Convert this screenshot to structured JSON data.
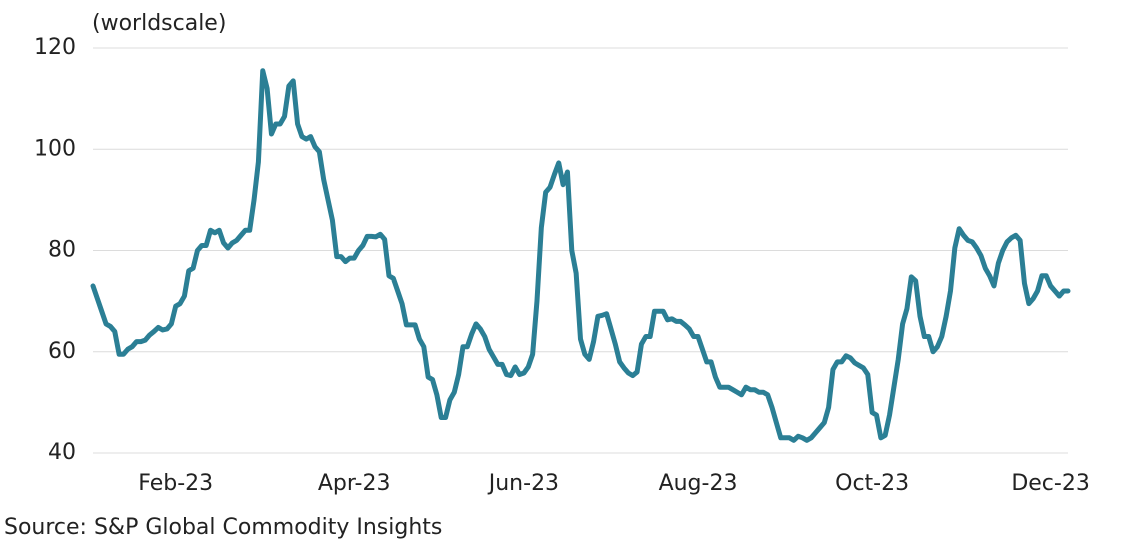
{
  "chart_data": {
    "type": "line",
    "y_axis_label": "(worldscale)",
    "source": "Source: S&P Global Commodity Insights",
    "categories": [
      null,
      null,
      null,
      null,
      null,
      null,
      null,
      null,
      null,
      null,
      null,
      null,
      null,
      null,
      null,
      null,
      null,
      null,
      null,
      "Feb-23",
      null,
      null,
      null,
      null,
      null,
      null,
      null,
      null,
      null,
      null,
      null,
      null,
      null,
      null,
      null,
      null,
      null,
      null,
      null,
      null,
      null,
      null,
      null,
      null,
      null,
      null,
      null,
      null,
      null,
      null,
      null,
      null,
      null,
      null,
      null,
      null,
      null,
      null,
      null,
      null,
      "Apr-23",
      null,
      null,
      null,
      null,
      null,
      null,
      null,
      null,
      null,
      null,
      null,
      null,
      null,
      null,
      null,
      null,
      null,
      null,
      null,
      null,
      null,
      null,
      null,
      null,
      null,
      null,
      null,
      null,
      null,
      null,
      null,
      null,
      null,
      null,
      null,
      null,
      null,
      null,
      "Jun-23",
      null,
      null,
      null,
      null,
      null,
      null,
      null,
      null,
      null,
      null,
      null,
      null,
      null,
      null,
      null,
      null,
      null,
      null,
      null,
      null,
      null,
      null,
      null,
      null,
      null,
      null,
      null,
      null,
      null,
      null,
      null,
      null,
      null,
      null,
      null,
      null,
      null,
      null,
      null,
      "Aug-23",
      null,
      null,
      null,
      null,
      null,
      null,
      null,
      null,
      null,
      null,
      null,
      null,
      null,
      null,
      null,
      null,
      null,
      null,
      null,
      null,
      null,
      null,
      null,
      null,
      null,
      null,
      null,
      null,
      null,
      null,
      null,
      null,
      null,
      null,
      null,
      null,
      null,
      null,
      null,
      "Oct-23",
      null,
      null,
      null,
      null,
      null,
      null,
      null,
      null,
      null,
      null,
      null,
      null,
      null,
      null,
      null,
      null,
      null,
      null,
      null,
      null,
      null,
      null,
      null,
      null,
      null,
      null,
      null,
      null,
      null,
      null,
      null,
      null,
      null,
      null,
      null,
      null,
      null,
      null,
      null,
      null,
      "Dec-23",
      null,
      null,
      null,
      null
    ],
    "series": [
      {
        "color": "#2b7f95",
        "values": [
          73,
          70.5,
          68,
          65.5,
          65,
          64,
          59.5,
          59.5,
          60.5,
          61,
          62,
          62,
          62.3,
          63.3,
          64,
          64.8,
          64.3,
          64.5,
          65.5,
          69,
          69.5,
          71,
          76,
          76.5,
          80,
          81,
          81,
          84,
          83.5,
          84,
          81.5,
          80.5,
          81.5,
          82,
          83,
          84,
          84,
          90,
          97.5,
          115.5,
          112,
          103,
          105,
          105,
          106.5,
          112.5,
          113.5,
          105,
          102.5,
          102,
          102.5,
          100.5,
          99.5,
          94,
          90,
          86,
          78.8,
          78.8,
          77.8,
          78.5,
          78.5,
          80,
          81,
          82.8,
          82.8,
          82.7,
          83.2,
          82.2,
          75,
          74.5,
          72,
          69.5,
          65.3,
          65.3,
          65.3,
          62.5,
          61,
          55,
          54.5,
          51.5,
          47,
          47,
          50.5,
          52,
          55.5,
          61,
          61,
          63.5,
          65.5,
          64.5,
          63,
          60.5,
          59,
          57.5,
          57.5,
          55.5,
          55.3,
          57,
          55.5,
          55.8,
          57,
          59.5,
          70,
          84.5,
          91.5,
          92.5,
          95,
          97.3,
          93,
          95.5,
          80,
          75.5,
          62.5,
          59.5,
          58.5,
          62,
          67,
          67.2,
          67.5,
          64.5,
          61.5,
          58,
          56.8,
          55.8,
          55.3,
          56,
          61.5,
          63,
          63,
          68,
          68,
          68,
          66.3,
          66.5,
          66,
          66,
          65.3,
          64.5,
          63,
          63,
          60.5,
          58,
          58,
          55,
          53,
          53,
          53,
          52.5,
          52,
          51.5,
          53,
          52.5,
          52.5,
          52,
          52,
          51.5,
          49,
          46,
          43,
          43,
          43,
          42.5,
          43.3,
          43,
          42.5,
          43,
          44,
          45,
          46,
          49,
          56.5,
          58,
          58,
          59.2,
          58.8,
          57.8,
          57.3,
          56.8,
          55.5,
          48,
          47.5,
          43,
          43.5,
          47.5,
          53,
          58.5,
          65.5,
          68.5,
          74.8,
          74,
          67,
          63,
          63,
          60,
          61,
          63,
          67,
          72,
          80.5,
          84.3,
          83,
          82,
          81.7,
          80.5,
          79,
          76.5,
          75,
          73,
          77.5,
          80,
          81.7,
          82.5,
          83,
          82,
          73.5,
          69.5,
          70.5,
          72,
          75,
          75,
          73,
          72,
          71,
          72,
          72
        ]
      }
    ],
    "ylim": [
      40,
      120
    ],
    "yticks": [
      40,
      60,
      80,
      100,
      120
    ],
    "grid": true
  }
}
